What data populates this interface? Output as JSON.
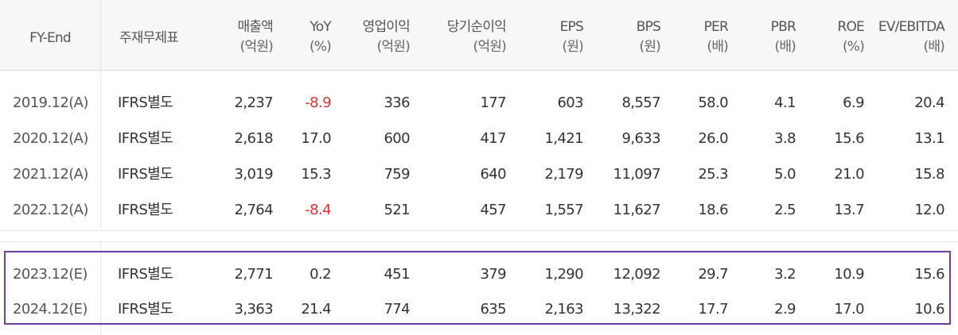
{
  "headers": {
    "fy": "FY-End",
    "type": "주재무제표",
    "sales": {
      "main": "매출액",
      "sub": "(억원)"
    },
    "yoy": {
      "main": "YoY",
      "sub": "(%)"
    },
    "op": {
      "main": "영업이익",
      "sub": "(억원)"
    },
    "net": {
      "main": "당기순이익",
      "sub": "(억원)"
    },
    "eps": {
      "main": "EPS",
      "sub": "(원)"
    },
    "bps": {
      "main": "BPS",
      "sub": "(원)"
    },
    "per": {
      "main": "PER",
      "sub": "(배)"
    },
    "pbr": {
      "main": "PBR",
      "sub": "(배)"
    },
    "roe": {
      "main": "ROE",
      "sub": "(%)"
    },
    "ev": {
      "main": "EV/EBITDA",
      "sub": "(배)"
    }
  },
  "rows": [
    {
      "fy": "2019.12(A)",
      "type": "IFRS별도",
      "sales": "2,237",
      "yoy": "-8.9",
      "op": "336",
      "net": "177",
      "eps": "603",
      "bps": "8,557",
      "per": "58.0",
      "pbr": "4.1",
      "roe": "6.9",
      "ev": "20.4"
    },
    {
      "fy": "2020.12(A)",
      "type": "IFRS별도",
      "sales": "2,618",
      "yoy": "17.0",
      "op": "600",
      "net": "417",
      "eps": "1,421",
      "bps": "9,633",
      "per": "26.0",
      "pbr": "3.8",
      "roe": "15.6",
      "ev": "13.1"
    },
    {
      "fy": "2021.12(A)",
      "type": "IFRS별도",
      "sales": "3,019",
      "yoy": "15.3",
      "op": "759",
      "net": "640",
      "eps": "2,179",
      "bps": "11,097",
      "per": "25.3",
      "pbr": "5.0",
      "roe": "21.0",
      "ev": "15.8"
    },
    {
      "fy": "2022.12(A)",
      "type": "IFRS별도",
      "sales": "2,764",
      "yoy": "-8.4",
      "op": "521",
      "net": "457",
      "eps": "1,557",
      "bps": "11,627",
      "per": "18.6",
      "pbr": "2.5",
      "roe": "13.7",
      "ev": "12.0"
    },
    {
      "fy": "2023.12(E)",
      "type": "IFRS별도",
      "sales": "2,771",
      "yoy": "0.2",
      "op": "451",
      "net": "379",
      "eps": "1,290",
      "bps": "12,092",
      "per": "29.7",
      "pbr": "3.2",
      "roe": "10.9",
      "ev": "15.6"
    },
    {
      "fy": "2024.12(E)",
      "type": "IFRS별도",
      "sales": "3,363",
      "yoy": "21.4",
      "op": "774",
      "net": "635",
      "eps": "2,163",
      "bps": "13,322",
      "per": "17.7",
      "pbr": "2.9",
      "roe": "17.0",
      "ev": "10.6"
    }
  ],
  "colors": {
    "negative": "#e03030",
    "highlight_border": "#6a3ea1",
    "header_bg": "#f7f7f7"
  }
}
